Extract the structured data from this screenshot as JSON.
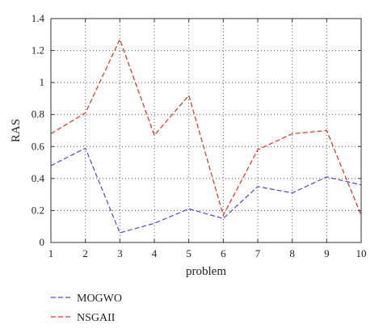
{
  "chart_data": {
    "type": "line",
    "xlabel": "problem",
    "ylabel": "RAS",
    "x": [
      1,
      2,
      3,
      4,
      5,
      6,
      7,
      8,
      9,
      10
    ],
    "xlim": [
      1,
      10
    ],
    "ylim": [
      0,
      1.4
    ],
    "xticks": [
      "1",
      "2",
      "3",
      "4",
      "5",
      "6",
      "7",
      "8",
      "9",
      "10"
    ],
    "yticks": [
      "0",
      "0.2",
      "0.4",
      "0.6",
      "0.8",
      "1",
      "1.2",
      "1.4"
    ],
    "grid": true,
    "legend_position": "bottom-left",
    "series": [
      {
        "name": "MOGWO",
        "color": "#4b4bd1",
        "values": [
          0.48,
          0.59,
          0.06,
          0.12,
          0.21,
          0.15,
          0.35,
          0.31,
          0.41,
          0.36
        ]
      },
      {
        "name": "NSGAII",
        "color": "#e0311c",
        "values": [
          0.68,
          0.81,
          1.27,
          0.67,
          0.92,
          0.17,
          0.58,
          0.68,
          0.7,
          0.17
        ]
      }
    ]
  }
}
